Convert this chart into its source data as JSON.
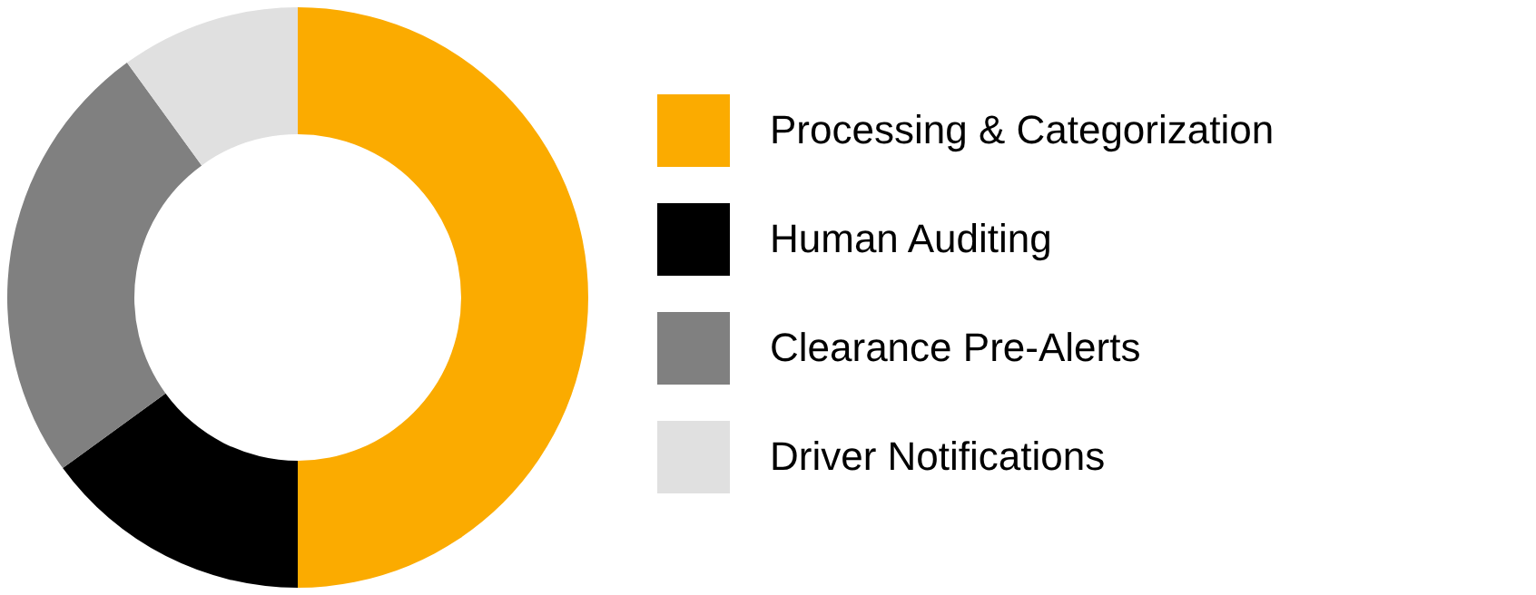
{
  "chart_data": {
    "type": "donut",
    "categories": [
      "Processing & Categorization",
      "Human Auditing",
      "Clearance Pre-Alerts",
      "Driver Notifications"
    ],
    "values": [
      50,
      15,
      25,
      10
    ],
    "colors": [
      "#fbab00",
      "#000000",
      "#808080",
      "#e0e0e0"
    ],
    "legend": "right"
  }
}
